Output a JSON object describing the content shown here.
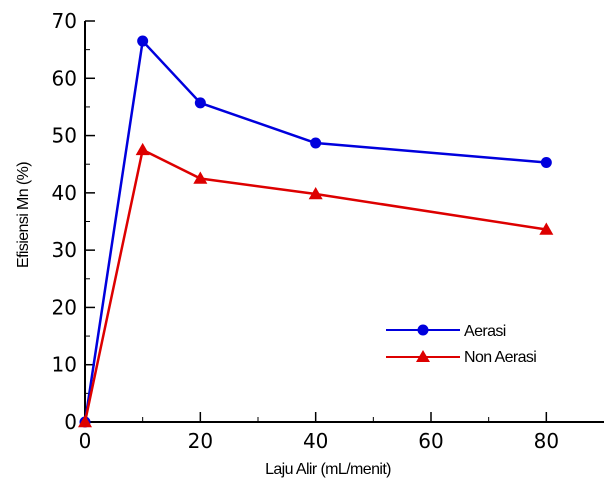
{
  "chart_data": {
    "type": "line",
    "title": "",
    "xlabel": "Laju Alir (mL/menit)",
    "ylabel": "Efisiensi Mn (%)",
    "x": [
      0,
      10,
      20,
      40,
      80
    ],
    "xlim": [
      0,
      90
    ],
    "ylim": [
      0,
      70
    ],
    "xticks": [
      "0",
      "20",
      "40",
      "60",
      "80"
    ],
    "xtick_values": [
      0,
      20,
      40,
      60,
      80
    ],
    "yticks": [
      "0",
      "10",
      "20",
      "30",
      "40",
      "50",
      "60",
      "70"
    ],
    "ytick_values": [
      0,
      10,
      20,
      30,
      40,
      50,
      60,
      70
    ],
    "legend_position": "right-middle",
    "grid": false,
    "series": [
      {
        "name": "Aerasi",
        "values": [
          0,
          66.5,
          55.7,
          48.7,
          45.3
        ],
        "color": "#0000dd",
        "marker": "circle"
      },
      {
        "name": "Non Aerasi",
        "values": [
          0,
          47.5,
          42.5,
          39.8,
          33.6
        ],
        "color": "#dd0000",
        "marker": "triangle"
      }
    ]
  }
}
